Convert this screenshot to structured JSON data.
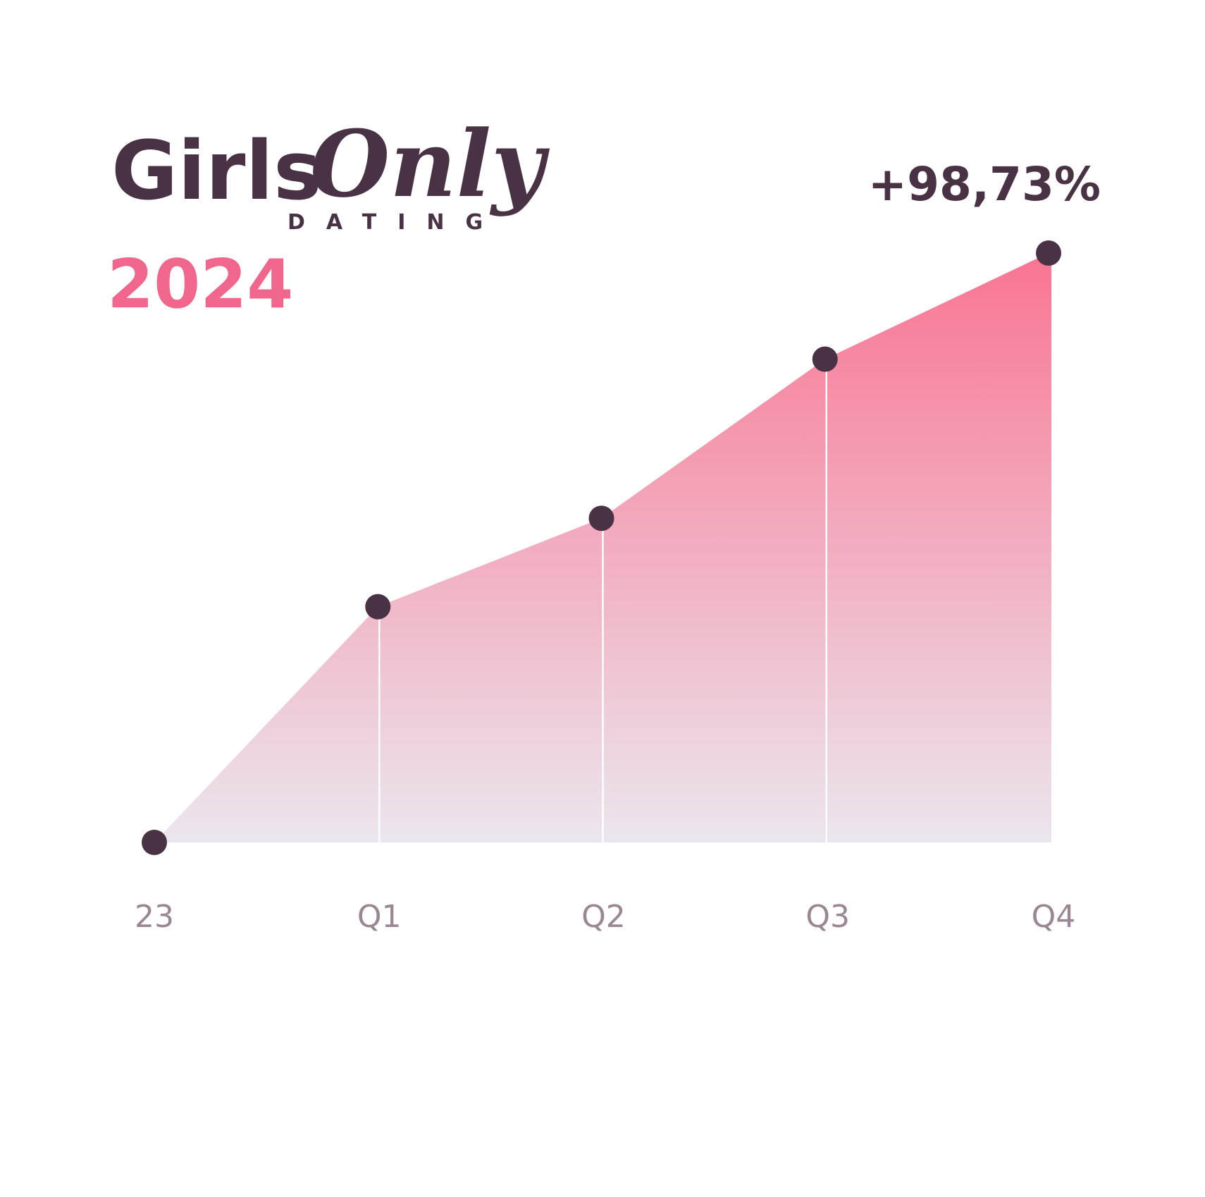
{
  "brand": {
    "name_part1": "Girls",
    "name_part2": "Only",
    "tagline": "DATING"
  },
  "year_label": "2024",
  "growth_label": "+98,73%",
  "colors": {
    "accent_pink": "#f1668d",
    "dark_plum": "#4a3245",
    "tick_gray": "#9a8793",
    "fill_top": "#f97592",
    "fill_bottom": "#ebe6ee"
  },
  "chart_data": {
    "type": "area",
    "categories": [
      "23",
      "Q1",
      "Q2",
      "Q3",
      "Q4"
    ],
    "values": [
      0,
      40,
      55,
      82,
      100
    ],
    "ylim": [
      0,
      100
    ],
    "grid": false,
    "legend": "none",
    "title": "",
    "xlabel": "",
    "ylabel": ""
  }
}
